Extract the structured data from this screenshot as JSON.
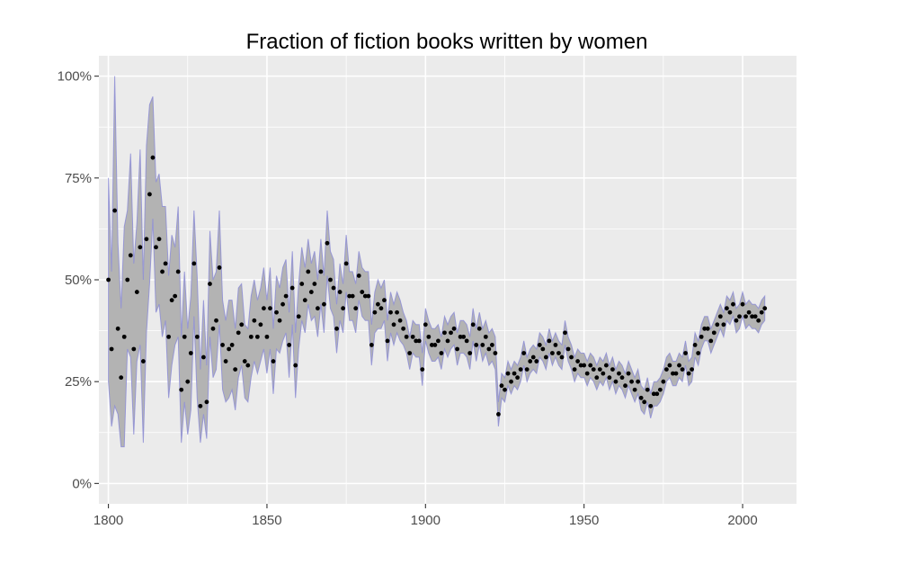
{
  "chart_data": {
    "type": "scatter",
    "title": "Fraction of fiction books written by women",
    "xlabel": "",
    "ylabel": "",
    "xlim": [
      1797,
      2017
    ],
    "ylim": [
      -0.05,
      1.05
    ],
    "x_ticks": [
      {
        "value": 1800,
        "label": "1800"
      },
      {
        "value": 1850,
        "label": "1850"
      },
      {
        "value": 1900,
        "label": "1900"
      },
      {
        "value": 1950,
        "label": "1950"
      },
      {
        "value": 2000,
        "label": "2000"
      }
    ],
    "y_ticks": [
      {
        "value": 0,
        "label": "0%"
      },
      {
        "value": 0.25,
        "label": "25%"
      },
      {
        "value": 0.5,
        "label": "50%"
      },
      {
        "value": 0.75,
        "label": "75%"
      },
      {
        "value": 1.0,
        "label": "100%"
      }
    ],
    "grid": true,
    "legend": "none",
    "colors": {
      "panel": "#ebebeb",
      "grid": "#ffffff",
      "points": "#000000",
      "ribbon_fill": "#b3b3b3",
      "ribbon_stroke": "#8a8ad6"
    },
    "series": [
      {
        "points": [
          [
            1800,
            0.5
          ],
          [
            1801,
            0.33
          ],
          [
            1802,
            0.67
          ],
          [
            1803,
            0.38
          ],
          [
            1804,
            0.26
          ],
          [
            1805,
            0.36
          ],
          [
            1806,
            0.5
          ],
          [
            1807,
            0.56
          ],
          [
            1808,
            0.33
          ],
          [
            1809,
            0.47
          ],
          [
            1810,
            0.58
          ],
          [
            1811,
            0.3
          ],
          [
            1812,
            0.6
          ],
          [
            1813,
            0.71
          ],
          [
            1814,
            0.8
          ],
          [
            1815,
            0.58
          ],
          [
            1816,
            0.6
          ],
          [
            1817,
            0.52
          ],
          [
            1818,
            0.54
          ],
          [
            1819,
            0.36
          ],
          [
            1820,
            0.45
          ],
          [
            1821,
            0.46
          ],
          [
            1822,
            0.52
          ],
          [
            1823,
            0.23
          ],
          [
            1824,
            0.36
          ],
          [
            1825,
            0.25
          ],
          [
            1826,
            0.32
          ],
          [
            1827,
            0.54
          ],
          [
            1828,
            0.36
          ],
          [
            1829,
            0.19
          ],
          [
            1830,
            0.31
          ],
          [
            1831,
            0.2
          ],
          [
            1832,
            0.49
          ],
          [
            1833,
            0.38
          ],
          [
            1834,
            0.4
          ],
          [
            1835,
            0.53
          ],
          [
            1836,
            0.34
          ],
          [
            1837,
            0.3
          ],
          [
            1838,
            0.33
          ],
          [
            1839,
            0.34
          ],
          [
            1840,
            0.28
          ],
          [
            1841,
            0.37
          ],
          [
            1842,
            0.39
          ],
          [
            1843,
            0.3
          ],
          [
            1844,
            0.29
          ],
          [
            1845,
            0.36
          ],
          [
            1846,
            0.4
          ],
          [
            1847,
            0.36
          ],
          [
            1848,
            0.39
          ],
          [
            1849,
            0.43
          ],
          [
            1850,
            0.36
          ],
          [
            1851,
            0.43
          ],
          [
            1852,
            0.3
          ],
          [
            1853,
            0.42
          ],
          [
            1854,
            0.4
          ],
          [
            1855,
            0.44
          ],
          [
            1856,
            0.46
          ],
          [
            1857,
            0.34
          ],
          [
            1858,
            0.48
          ],
          [
            1859,
            0.29
          ],
          [
            1860,
            0.41
          ],
          [
            1861,
            0.49
          ],
          [
            1862,
            0.45
          ],
          [
            1863,
            0.52
          ],
          [
            1864,
            0.47
          ],
          [
            1865,
            0.49
          ],
          [
            1866,
            0.43
          ],
          [
            1867,
            0.52
          ],
          [
            1868,
            0.44
          ],
          [
            1869,
            0.59
          ],
          [
            1870,
            0.5
          ],
          [
            1871,
            0.48
          ],
          [
            1872,
            0.38
          ],
          [
            1873,
            0.47
          ],
          [
            1874,
            0.43
          ],
          [
            1875,
            0.54
          ],
          [
            1876,
            0.46
          ],
          [
            1877,
            0.46
          ],
          [
            1878,
            0.43
          ],
          [
            1879,
            0.51
          ],
          [
            1880,
            0.47
          ],
          [
            1881,
            0.46
          ],
          [
            1882,
            0.46
          ],
          [
            1883,
            0.34
          ],
          [
            1884,
            0.42
          ],
          [
            1885,
            0.44
          ],
          [
            1886,
            0.43
          ],
          [
            1887,
            0.45
          ],
          [
            1888,
            0.35
          ],
          [
            1889,
            0.42
          ],
          [
            1890,
            0.39
          ],
          [
            1891,
            0.42
          ],
          [
            1892,
            0.4
          ],
          [
            1893,
            0.38
          ],
          [
            1894,
            0.36
          ],
          [
            1895,
            0.32
          ],
          [
            1896,
            0.36
          ],
          [
            1897,
            0.35
          ],
          [
            1898,
            0.35
          ],
          [
            1899,
            0.28
          ],
          [
            1900,
            0.39
          ],
          [
            1901,
            0.36
          ],
          [
            1902,
            0.34
          ],
          [
            1903,
            0.34
          ],
          [
            1904,
            0.35
          ],
          [
            1905,
            0.32
          ],
          [
            1906,
            0.37
          ],
          [
            1907,
            0.35
          ],
          [
            1908,
            0.37
          ],
          [
            1909,
            0.38
          ],
          [
            1910,
            0.33
          ],
          [
            1911,
            0.36
          ],
          [
            1912,
            0.36
          ],
          [
            1913,
            0.35
          ],
          [
            1914,
            0.32
          ],
          [
            1915,
            0.39
          ],
          [
            1916,
            0.34
          ],
          [
            1917,
            0.38
          ],
          [
            1918,
            0.34
          ],
          [
            1919,
            0.36
          ],
          [
            1920,
            0.33
          ],
          [
            1921,
            0.34
          ],
          [
            1922,
            0.32
          ],
          [
            1923,
            0.17
          ],
          [
            1924,
            0.24
          ],
          [
            1925,
            0.23
          ],
          [
            1926,
            0.27
          ],
          [
            1927,
            0.25
          ],
          [
            1928,
            0.27
          ],
          [
            1929,
            0.26
          ],
          [
            1930,
            0.28
          ],
          [
            1931,
            0.32
          ],
          [
            1932,
            0.28
          ],
          [
            1933,
            0.3
          ],
          [
            1934,
            0.31
          ],
          [
            1935,
            0.3
          ],
          [
            1936,
            0.34
          ],
          [
            1937,
            0.33
          ],
          [
            1938,
            0.31
          ],
          [
            1939,
            0.35
          ],
          [
            1940,
            0.32
          ],
          [
            1941,
            0.34
          ],
          [
            1942,
            0.32
          ],
          [
            1943,
            0.31
          ],
          [
            1944,
            0.37
          ],
          [
            1945,
            0.33
          ],
          [
            1946,
            0.31
          ],
          [
            1947,
            0.28
          ],
          [
            1948,
            0.3
          ],
          [
            1949,
            0.29
          ],
          [
            1950,
            0.29
          ],
          [
            1951,
            0.27
          ],
          [
            1952,
            0.29
          ],
          [
            1953,
            0.28
          ],
          [
            1954,
            0.26
          ],
          [
            1955,
            0.28
          ],
          [
            1956,
            0.27
          ],
          [
            1957,
            0.29
          ],
          [
            1958,
            0.26
          ],
          [
            1959,
            0.28
          ],
          [
            1960,
            0.25
          ],
          [
            1961,
            0.27
          ],
          [
            1962,
            0.26
          ],
          [
            1963,
            0.24
          ],
          [
            1964,
            0.27
          ],
          [
            1965,
            0.25
          ],
          [
            1966,
            0.23
          ],
          [
            1967,
            0.25
          ],
          [
            1968,
            0.21
          ],
          [
            1969,
            0.2
          ],
          [
            1970,
            0.23
          ],
          [
            1971,
            0.19
          ],
          [
            1972,
            0.22
          ],
          [
            1973,
            0.22
          ],
          [
            1974,
            0.23
          ],
          [
            1975,
            0.25
          ],
          [
            1976,
            0.28
          ],
          [
            1977,
            0.29
          ],
          [
            1978,
            0.27
          ],
          [
            1979,
            0.27
          ],
          [
            1980,
            0.29
          ],
          [
            1981,
            0.28
          ],
          [
            1982,
            0.32
          ],
          [
            1983,
            0.27
          ],
          [
            1984,
            0.28
          ],
          [
            1985,
            0.34
          ],
          [
            1986,
            0.32
          ],
          [
            1987,
            0.36
          ],
          [
            1988,
            0.38
          ],
          [
            1989,
            0.38
          ],
          [
            1990,
            0.35
          ],
          [
            1991,
            0.37
          ],
          [
            1992,
            0.39
          ],
          [
            1993,
            0.41
          ],
          [
            1994,
            0.39
          ],
          [
            1995,
            0.43
          ],
          [
            1996,
            0.42
          ],
          [
            1997,
            0.44
          ],
          [
            1998,
            0.4
          ],
          [
            1999,
            0.41
          ],
          [
            2000,
            0.44
          ],
          [
            2001,
            0.41
          ],
          [
            2002,
            0.42
          ],
          [
            2003,
            0.41
          ],
          [
            2004,
            0.41
          ],
          [
            2005,
            0.4
          ],
          [
            2006,
            0.42
          ],
          [
            2007,
            0.43
          ]
        ],
        "ribbon_half_width": [
          0.25,
          0.19,
          0.48,
          0.21,
          0.17,
          0.27,
          0.17,
          0.25,
          0.21,
          0.17,
          0.24,
          0.2,
          0.23,
          0.22,
          0.15,
          0.16,
          0.16,
          0.16,
          0.14,
          0.15,
          0.16,
          0.12,
          0.16,
          0.13,
          0.16,
          0.13,
          0.14,
          0.13,
          0.15,
          0.09,
          0.14,
          0.09,
          0.13,
          0.12,
          0.12,
          0.14,
          0.11,
          0.1,
          0.12,
          0.11,
          0.1,
          0.11,
          0.1,
          0.09,
          0.09,
          0.1,
          0.1,
          0.09,
          0.09,
          0.1,
          0.09,
          0.1,
          0.08,
          0.09,
          0.08,
          0.09,
          0.09,
          0.08,
          0.09,
          0.08,
          0.08,
          0.09,
          0.08,
          0.08,
          0.07,
          0.08,
          0.07,
          0.08,
          0.07,
          0.08,
          0.07,
          0.07,
          0.06,
          0.07,
          0.06,
          0.07,
          0.06,
          0.06,
          0.06,
          0.06,
          0.06,
          0.06,
          0.06,
          0.05,
          0.05,
          0.06,
          0.05,
          0.05,
          0.05,
          0.05,
          0.05,
          0.05,
          0.05,
          0.04,
          0.04,
          0.04,
          0.04,
          0.04,
          0.04,
          0.04,
          0.04,
          0.04,
          0.04,
          0.04,
          0.04,
          0.04,
          0.04,
          0.04,
          0.04,
          0.04,
          0.04,
          0.04,
          0.04,
          0.04,
          0.04,
          0.04,
          0.04,
          0.04,
          0.04,
          0.04,
          0.04,
          0.04,
          0.04,
          0.03,
          0.03,
          0.03,
          0.03,
          0.03,
          0.03,
          0.03,
          0.03,
          0.03,
          0.03,
          0.03,
          0.03,
          0.03,
          0.03,
          0.03,
          0.03,
          0.03,
          0.03,
          0.03,
          0.03,
          0.03,
          0.03,
          0.03,
          0.03,
          0.03,
          0.03,
          0.03,
          0.03,
          0.03,
          0.03,
          0.03,
          0.03,
          0.03,
          0.03,
          0.03,
          0.03,
          0.03,
          0.03,
          0.03,
          0.03,
          0.03,
          0.03,
          0.03,
          0.03,
          0.03,
          0.03,
          0.03,
          0.03,
          0.03,
          0.03,
          0.03,
          0.03,
          0.03,
          0.03,
          0.03,
          0.03,
          0.03,
          0.03,
          0.03,
          0.03,
          0.03,
          0.03,
          0.03,
          0.03,
          0.03,
          0.03,
          0.03,
          0.03,
          0.03,
          0.03,
          0.03,
          0.03,
          0.03,
          0.03,
          0.03,
          0.03,
          0.03,
          0.03,
          0.03,
          0.03,
          0.03,
          0.03,
          0.03,
          0.03,
          0.03,
          0.03,
          0.03,
          0.03,
          0.03,
          0.03,
          0.03,
          0.03,
          0.03,
          0.03,
          0.03
        ]
      }
    ]
  }
}
